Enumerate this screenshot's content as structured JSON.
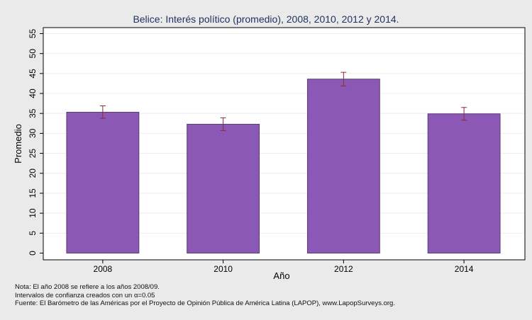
{
  "chart_data": {
    "type": "bar",
    "title": "Belice: Interés político (promedio), 2008, 2010, 2012 y 2014.",
    "xlabel": "Año",
    "ylabel": "Promedio",
    "categories": [
      "2008",
      "2010",
      "2012",
      "2014"
    ],
    "series": [
      {
        "values": [
          35.3,
          32.3,
          43.6,
          34.9
        ],
        "ci_low": [
          33.8,
          30.7,
          41.9,
          33.3
        ],
        "ci_high": [
          36.9,
          33.9,
          45.3,
          36.5
        ]
      }
    ],
    "ylim": [
      0,
      56
    ],
    "yticks": [
      0,
      5,
      10,
      15,
      20,
      25,
      30,
      35,
      40,
      45,
      50,
      55
    ],
    "grid": true,
    "legend": "none",
    "colors": {
      "bar_fill": "#8b59b5",
      "bar_stroke": "#5a3a7a",
      "error_bar": "#8b2a3a",
      "plot_bg": "#ffffff",
      "outer_bg": "#eaeaea",
      "grid": "#eeeeee"
    }
  },
  "notes": [
    "Nota: El año 2008 se refiere a los años 2008/09.",
    "Intervalos de confianza creados con un α=0.05",
    "Fuente: El Barómetro de las Américas por el Proyecto de Opinión Pública de América Latina (LAPOP), www.LapopSurveys.org."
  ]
}
